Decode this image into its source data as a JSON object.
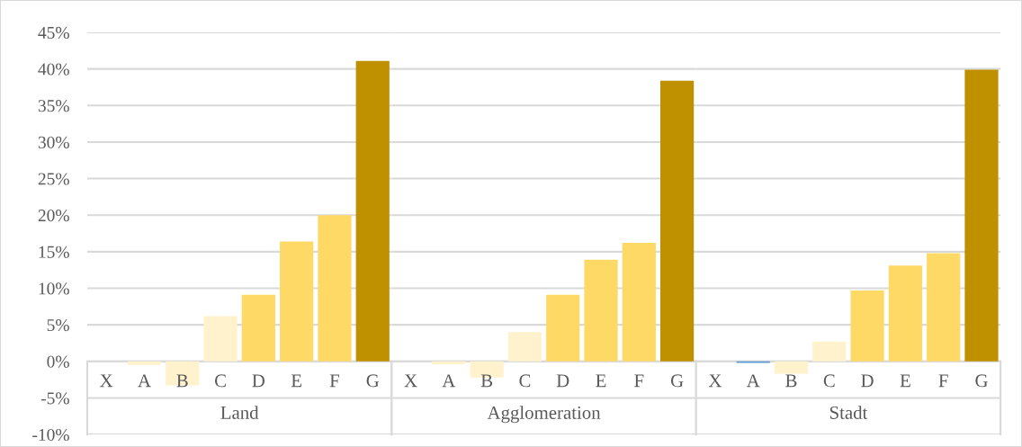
{
  "chart_data": [
    {
      "type": "bar",
      "xlabel": "Land",
      "categories": [
        "X",
        "A",
        "B",
        "C",
        "D",
        "E",
        "F",
        "G"
      ],
      "values": [
        null,
        -0.5,
        -3.3,
        6.2,
        9.1,
        16.4,
        20.0,
        41.1
      ],
      "colors": [
        "#fff2cc",
        "#fff2cc",
        "#fff2cc",
        "#fff2cc",
        "#ffd966",
        "#ffd966",
        "#ffd966",
        "#bf9000"
      ],
      "ylim": [
        -10,
        45
      ],
      "yticks": [
        {
          "value": -10,
          "label": "-10%"
        },
        {
          "value": -5,
          "label": "-5%"
        },
        {
          "value": 0,
          "label": "0%"
        },
        {
          "value": 5,
          "label": "5%"
        },
        {
          "value": 10,
          "label": "10%"
        },
        {
          "value": 15,
          "label": "15%"
        },
        {
          "value": 20,
          "label": "20%"
        },
        {
          "value": 25,
          "label": "25%"
        },
        {
          "value": 30,
          "label": "30%"
        },
        {
          "value": 35,
          "label": "35%"
        },
        {
          "value": 40,
          "label": "40%"
        },
        {
          "value": 45,
          "label": "45%"
        }
      ],
      "grid": "y"
    },
    {
      "type": "bar",
      "xlabel": "Agglomeration",
      "categories": [
        "X",
        "A",
        "B",
        "C",
        "D",
        "E",
        "F",
        "G"
      ],
      "values": [
        null,
        -0.4,
        -2.2,
        4.0,
        9.1,
        13.9,
        16.2,
        38.4
      ],
      "colors": [
        "#fff2cc",
        "#fff2cc",
        "#fff2cc",
        "#fff2cc",
        "#ffd966",
        "#ffd966",
        "#ffd966",
        "#bf9000"
      ],
      "ylim": [
        -10,
        45
      ],
      "yticks": [
        -10,
        -5,
        0,
        5,
        10,
        15,
        20,
        25,
        30,
        35,
        40,
        45
      ],
      "grid": "y",
      "tick_labels": "x"
    },
    {
      "type": "bar",
      "xlabel": "Stadt",
      "categories": [
        "X",
        "A",
        "B",
        "C",
        "D",
        "E",
        "F",
        "G"
      ],
      "values": [
        null,
        -0.2,
        -1.7,
        2.7,
        9.7,
        13.1,
        14.8,
        39.9
      ],
      "colors": [
        "#fff2cc",
        "#5b9bd5",
        "#fff2cc",
        "#fff2cc",
        "#ffd966",
        "#ffd966",
        "#ffd966",
        "#bf9000"
      ],
      "ylim": [
        -10,
        45
      ],
      "yticks": [
        -10,
        -5,
        0,
        5,
        10,
        15,
        20,
        25,
        30,
        35,
        40,
        45
      ],
      "grid": "y",
      "tick_labels": "x"
    }
  ]
}
